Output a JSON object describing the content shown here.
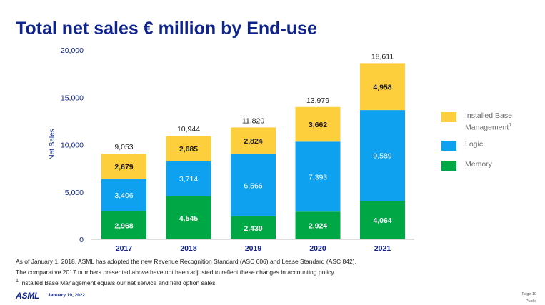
{
  "title": "Total net sales € million by End-use",
  "chart_data": {
    "type": "bar",
    "stacked": true,
    "categories": [
      "2017",
      "2018",
      "2019",
      "2020",
      "2021"
    ],
    "series": [
      {
        "name": "Memory",
        "color": "#00a845",
        "values": [
          2968,
          4545,
          2430,
          2924,
          4064
        ],
        "labels": [
          "2,968",
          "4,545",
          "2,430",
          "2,924",
          "4,064"
        ],
        "label_color": "#ffffff"
      },
      {
        "name": "Logic",
        "color": "#0ea1f0",
        "values": [
          3406,
          3714,
          6566,
          7393,
          9589
        ],
        "labels": [
          "3,406",
          "3,714",
          "6,566",
          "7,393",
          "9,589"
        ],
        "label_color": "#ffffff"
      },
      {
        "name": "Installed Base Management",
        "legend_sup": "1",
        "color": "#fdcf3d",
        "values": [
          2679,
          2685,
          2824,
          3662,
          4958
        ],
        "labels": [
          "2,679",
          "2,685",
          "2,824",
          "3,662",
          "4,958"
        ],
        "label_color": "#1a1a1a"
      }
    ],
    "totals": [
      9053,
      10944,
      11820,
      13979,
      18611
    ],
    "total_labels": [
      "9,053",
      "10,944",
      "11,820",
      "13,979",
      "18,611"
    ],
    "ylabel": "Net Sales",
    "ylim": [
      0,
      20000
    ],
    "yticks": [
      0,
      5000,
      10000,
      15000,
      20000
    ],
    "ytick_labels": [
      "0",
      "5,000",
      "10,000",
      "15,000",
      "20,000"
    ],
    "grid": false,
    "legend_position": "right"
  },
  "legend_order": [
    2,
    1,
    0
  ],
  "notes": [
    "As of January 1, 2018, ASML has adopted the new Revenue Recognition Standard (ASC 606) and Lease Standard (ASC 842).",
    "The comparative 2017 numbers presented above have not been adjusted to reflect these changes in accounting policy.",
    "Installed Base Management equals our net service and field option sales"
  ],
  "note_marker": "1",
  "footer": {
    "logo": "ASML",
    "date": "January 19, 2022",
    "page": "Page 10",
    "classification": "Public"
  }
}
